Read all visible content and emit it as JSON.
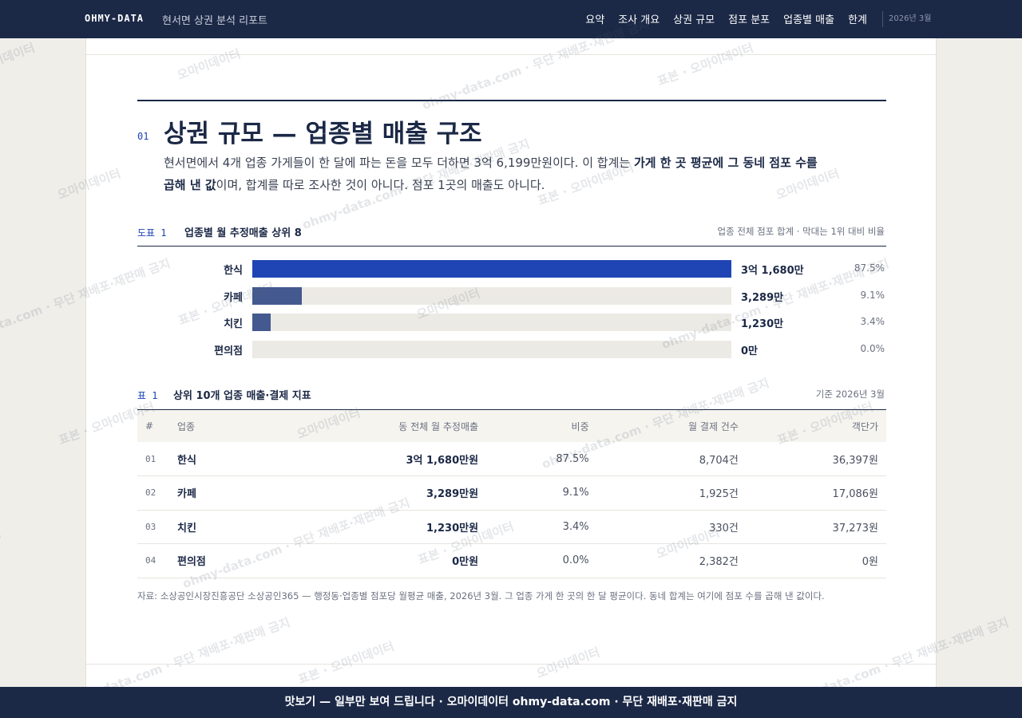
{
  "header": {
    "brand": "OHMY-DATA",
    "report_title": "현서면 상권 분석 리포트",
    "nav": [
      "요약",
      "조사 개요",
      "상권 규모",
      "점포 분포",
      "업종별 매출",
      "한계"
    ],
    "date": "2026년 3월"
  },
  "section": {
    "number": "01",
    "title": "상권 규모 — 업종별 매출 구조",
    "intro": [
      "현서면에서 4개 업종 가게들이 한 달에 파는 돈을 모두 더하면 3억 6,199만원이다. 이 합계는 ",
      "가게 한 곳 평균에 그 동네 점포 수를 곱해 낸 값",
      "이며, 합계를 따로 조사한 것이 아니다. 점포 1곳의 매출도 아니다."
    ]
  },
  "figure": {
    "label": "도표 1",
    "title": "업종별 월 추정매출 상위 8",
    "note": "업종 전체 점포 합계 · 막대는 1위 대비 비율",
    "rows": [
      {
        "name": "한식",
        "value": 31680,
        "value_label": "3억 1,680만",
        "share": "87.5%",
        "color": "#1f45b5"
      },
      {
        "name": "카페",
        "value": 3289,
        "value_label": "3,289만",
        "share": "9.1%",
        "color": "#44598f"
      },
      {
        "name": "치킨",
        "value": 1230,
        "value_label": "1,230만",
        "share": "3.4%",
        "color": "#44598f"
      },
      {
        "name": "편의점",
        "value": 0,
        "value_label": "0만",
        "share": "0.0%",
        "color": "#8a93a8"
      }
    ]
  },
  "table": {
    "label": "표 1",
    "title": "상위 10개 업종 매출·결제 지표",
    "note": "기준 2026년 3월",
    "columns": [
      "#",
      "업종",
      "동 전체 월 추정매출",
      "비중",
      "월 결제 건수",
      "객단가"
    ],
    "rows": [
      [
        "01",
        "한식",
        "3억 1,680만원",
        "87.5%",
        "8,704건",
        "36,397원"
      ],
      [
        "02",
        "카페",
        "3,289만원",
        "9.1%",
        "1,925건",
        "17,086원"
      ],
      [
        "03",
        "치킨",
        "1,230만원",
        "3.4%",
        "330건",
        "37,273원"
      ],
      [
        "04",
        "편의점",
        "0만원",
        "0.0%",
        "2,382건",
        "0원"
      ]
    ]
  },
  "source": "자료: 소상공인시장진흥공단 소상공인365 — 행정동·업종별 점포당 월평균 매출, 2026년 3월. 그 업종 가게 한 곳의 한 달 평균이다. 동네 합계는 여기에 점포 수를 곱해 낸 값이다.",
  "banner": "맛보기 — 일부만 보여 드립니다 · 오마이데이터 ohmy-data.com · 무단 재배포·재판매 금지",
  "watermarks": [
    "표본 · 오마이데이터",
    "오마이데이터",
    "ohmy-data.com · 무단 재배포·재판매 금지"
  ]
}
